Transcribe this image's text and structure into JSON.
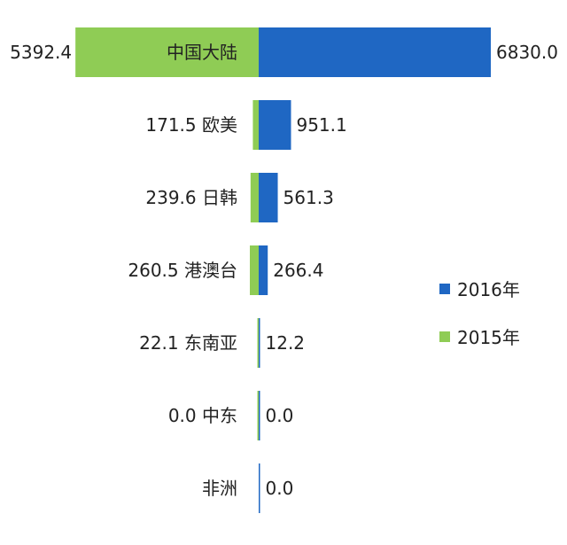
{
  "chart_data": {
    "type": "bar",
    "orientation": "horizontal-diverging",
    "categories": [
      "中国大陆",
      "欧美",
      "日韩",
      "港澳台",
      "东南亚",
      "中东",
      "非洲"
    ],
    "series": [
      {
        "name": "2016年",
        "color": "#1f67c3",
        "side": "right",
        "values": [
          6830.0,
          951.1,
          561.3,
          266.4,
          12.2,
          0.0,
          0.0
        ],
        "labels": [
          "6830.0",
          "951.1",
          "561.3",
          "266.4",
          "12.2",
          "0.0",
          "0.0"
        ]
      },
      {
        "name": "2015年",
        "color": "#8fcc55",
        "side": "left",
        "values": [
          5392.4,
          171.5,
          239.6,
          260.5,
          22.1,
          0.0,
          null
        ],
        "labels": [
          "5392.4",
          "171.5",
          "239.6",
          "260.5",
          "22.1",
          "0.0",
          ""
        ]
      }
    ],
    "legend": {
      "position": "right",
      "items": [
        "2016年",
        "2015年"
      ]
    },
    "grid": false,
    "title": "",
    "xlabel": "",
    "ylabel": ""
  }
}
